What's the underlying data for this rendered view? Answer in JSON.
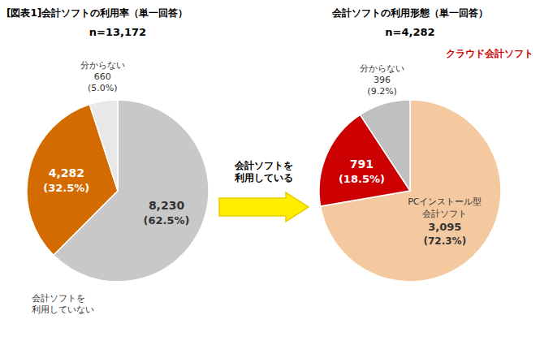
{
  "chart_data": [
    {
      "type": "pie",
      "title": "[図表1]会計ソフトの利用率（単一回答）",
      "subtitle": "n=13,172",
      "categories": [
        "会計ソフトを\n利用していない",
        "会計ソフトを\n利用している",
        "分からない"
      ],
      "values": [
        8230,
        4282,
        660
      ],
      "value_labels": [
        "8,230",
        "4,282",
        "660"
      ],
      "percents": [
        62.5,
        32.5,
        5.0
      ],
      "percent_labels": [
        "(62.5%)",
        "(32.5%)",
        "(5.0%)"
      ],
      "colors": [
        "#c8c8c8",
        "#d46b00",
        "#e8e8e8"
      ],
      "data_labels": true
    },
    {
      "type": "pie",
      "title": "会計ソフトの利用形態（単一回答）",
      "subtitle": "n=4,282",
      "categories": [
        "PCインストール型\n会計ソフト",
        "クラウド会計ソフト",
        "分からない"
      ],
      "values": [
        3095,
        791,
        396
      ],
      "value_labels": [
        "3,095",
        "791",
        "396"
      ],
      "percents": [
        72.3,
        18.5,
        9.2
      ],
      "percent_labels": [
        "(72.3%)",
        "(18.5%)",
        "(9.2%)"
      ],
      "colors": [
        "#f5c9a0",
        "#cc0000",
        "#c0c0c0"
      ],
      "data_labels": true
    }
  ]
}
